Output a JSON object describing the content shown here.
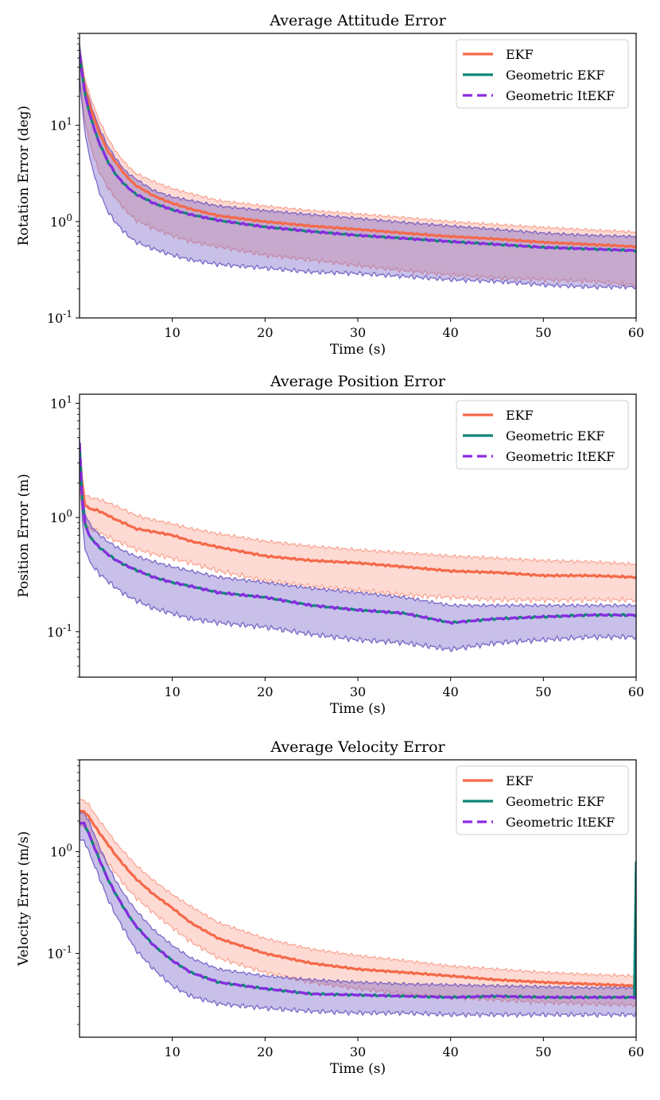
{
  "chart_data": [
    {
      "type": "line",
      "title": "Average Attitude Error",
      "xlabel": "Time (s)",
      "ylabel": "Rotation Error (deg)",
      "yscale": "log",
      "xlim": [
        0,
        60
      ],
      "ylim": [
        0.1,
        90
      ],
      "xticks": [
        10,
        20,
        30,
        40,
        50,
        60
      ],
      "yticks": [
        {
          "value": 0.1,
          "label": "10^{-1}"
        },
        {
          "value": 1,
          "label": "10^{0}"
        },
        {
          "value": 10,
          "label": "10^{1}"
        }
      ],
      "legend_position": "top-right",
      "grid": false,
      "x": [
        0,
        0.5,
        1,
        2,
        3,
        4,
        5,
        6,
        8,
        10,
        12,
        15,
        20,
        25,
        30,
        35,
        40,
        45,
        50,
        55,
        60
      ],
      "series": [
        {
          "name": "EKF",
          "color": "#f4694a",
          "dash": "solid",
          "mean": [
            55,
            27,
            17,
            9.0,
            5.5,
            4.0,
            3.0,
            2.4,
            1.85,
            1.55,
            1.35,
            1.15,
            1.0,
            0.9,
            0.83,
            0.76,
            0.7,
            0.66,
            0.61,
            0.58,
            0.55
          ],
          "upper": [
            70,
            33,
            22,
            12,
            7.5,
            5.2,
            4.0,
            3.2,
            2.6,
            2.2,
            1.95,
            1.65,
            1.45,
            1.3,
            1.2,
            1.1,
            1.0,
            0.93,
            0.87,
            0.82,
            0.78
          ],
          "lower": [
            30,
            13,
            7.0,
            3.5,
            2.3,
            1.7,
            1.3,
            1.05,
            0.85,
            0.72,
            0.62,
            0.55,
            0.45,
            0.4,
            0.35,
            0.31,
            0.28,
            0.26,
            0.25,
            0.24,
            0.22
          ]
        },
        {
          "name": "Geometric EKF",
          "color": "#0f8577",
          "dash": "solid",
          "mean": [
            55,
            24,
            14,
            7.0,
            4.3,
            3.0,
            2.35,
            1.95,
            1.55,
            1.33,
            1.18,
            1.03,
            0.88,
            0.79,
            0.72,
            0.67,
            0.62,
            0.58,
            0.54,
            0.52,
            0.5
          ],
          "upper": [
            70,
            30,
            19,
            10,
            6.2,
            4.4,
            3.3,
            2.8,
            2.1,
            1.8,
            1.65,
            1.45,
            1.3,
            1.18,
            1.08,
            0.98,
            0.9,
            0.83,
            0.76,
            0.72,
            0.7
          ],
          "lower": [
            30,
            10,
            5.0,
            2.2,
            1.3,
            0.95,
            0.75,
            0.62,
            0.52,
            0.45,
            0.4,
            0.36,
            0.33,
            0.3,
            0.29,
            0.27,
            0.25,
            0.24,
            0.22,
            0.21,
            0.21
          ]
        },
        {
          "name": "Geometric ItEKF",
          "color": "#8a2be2",
          "dash": "dashed",
          "mean": [
            55,
            24,
            14,
            7.0,
            4.3,
            3.0,
            2.35,
            1.95,
            1.55,
            1.33,
            1.18,
            1.03,
            0.88,
            0.79,
            0.72,
            0.67,
            0.62,
            0.58,
            0.54,
            0.52,
            0.5
          ],
          "upper": [
            70,
            30,
            19,
            10,
            6.2,
            4.4,
            3.3,
            2.8,
            2.1,
            1.8,
            1.65,
            1.45,
            1.3,
            1.18,
            1.08,
            0.98,
            0.9,
            0.83,
            0.76,
            0.72,
            0.7
          ],
          "lower": [
            30,
            10,
            5.0,
            2.2,
            1.3,
            0.95,
            0.75,
            0.62,
            0.52,
            0.45,
            0.4,
            0.36,
            0.33,
            0.3,
            0.29,
            0.27,
            0.25,
            0.24,
            0.22,
            0.21,
            0.21
          ]
        }
      ]
    },
    {
      "type": "line",
      "title": "Average Position Error",
      "xlabel": "Time (s)",
      "ylabel": "Position Error (m)",
      "yscale": "log",
      "xlim": [
        0,
        60
      ],
      "ylim": [
        0.04,
        12
      ],
      "xticks": [
        10,
        20,
        30,
        40,
        50,
        60
      ],
      "yticks": [
        {
          "value": 0.1,
          "label": "10^{-1}"
        },
        {
          "value": 1,
          "label": "10^{0}"
        },
        {
          "value": 10,
          "label": "10^{1}"
        }
      ],
      "legend_position": "top-right",
      "grid": false,
      "x": [
        0,
        0.3,
        0.6,
        1,
        2,
        3,
        4,
        5,
        6,
        8,
        10,
        12,
        15,
        20,
        25,
        30,
        35,
        40,
        45,
        50,
        55,
        60
      ],
      "series": [
        {
          "name": "EKF",
          "color": "#f4694a",
          "dash": "solid",
          "mean": [
            4.0,
            1.8,
            1.3,
            1.2,
            1.15,
            1.05,
            0.95,
            0.88,
            0.8,
            0.75,
            0.7,
            0.62,
            0.55,
            0.46,
            0.42,
            0.4,
            0.37,
            0.34,
            0.33,
            0.31,
            0.31,
            0.3
          ],
          "upper": [
            5.0,
            2.2,
            1.6,
            1.5,
            1.45,
            1.35,
            1.25,
            1.15,
            1.05,
            0.95,
            0.88,
            0.8,
            0.72,
            0.62,
            0.56,
            0.52,
            0.49,
            0.46,
            0.44,
            0.42,
            0.41,
            0.39
          ],
          "lower": [
            2.0,
            1.0,
            0.85,
            0.8,
            0.75,
            0.68,
            0.62,
            0.58,
            0.53,
            0.48,
            0.44,
            0.4,
            0.34,
            0.28,
            0.25,
            0.23,
            0.21,
            0.2,
            0.19,
            0.19,
            0.19,
            0.19
          ]
        },
        {
          "name": "Geometric EKF",
          "color": "#0f8577",
          "dash": "solid",
          "mean": [
            4.5,
            1.4,
            0.9,
            0.7,
            0.56,
            0.48,
            0.42,
            0.38,
            0.35,
            0.3,
            0.27,
            0.25,
            0.22,
            0.2,
            0.17,
            0.155,
            0.145,
            0.12,
            0.13,
            0.135,
            0.14,
            0.14
          ],
          "upper": [
            5.0,
            1.7,
            1.1,
            0.9,
            0.72,
            0.62,
            0.55,
            0.5,
            0.46,
            0.41,
            0.37,
            0.34,
            0.3,
            0.27,
            0.24,
            0.22,
            0.2,
            0.17,
            0.17,
            0.17,
            0.17,
            0.17
          ],
          "lower": [
            3.5,
            0.9,
            0.55,
            0.42,
            0.33,
            0.28,
            0.24,
            0.21,
            0.19,
            0.16,
            0.145,
            0.13,
            0.12,
            0.11,
            0.095,
            0.085,
            0.08,
            0.07,
            0.08,
            0.085,
            0.09,
            0.09
          ]
        },
        {
          "name": "Geometric ItEKF",
          "color": "#8a2be2",
          "dash": "dashed",
          "mean": [
            4.5,
            1.4,
            0.9,
            0.7,
            0.56,
            0.48,
            0.42,
            0.38,
            0.35,
            0.3,
            0.27,
            0.25,
            0.22,
            0.2,
            0.17,
            0.155,
            0.145,
            0.12,
            0.13,
            0.135,
            0.14,
            0.14
          ],
          "upper": [
            5.0,
            1.7,
            1.1,
            0.9,
            0.72,
            0.62,
            0.55,
            0.5,
            0.46,
            0.41,
            0.37,
            0.34,
            0.3,
            0.27,
            0.24,
            0.22,
            0.2,
            0.17,
            0.17,
            0.17,
            0.17,
            0.17
          ],
          "lower": [
            3.5,
            0.9,
            0.55,
            0.42,
            0.33,
            0.28,
            0.24,
            0.21,
            0.19,
            0.16,
            0.145,
            0.13,
            0.12,
            0.11,
            0.095,
            0.085,
            0.08,
            0.07,
            0.08,
            0.085,
            0.09,
            0.09
          ]
        }
      ]
    },
    {
      "type": "line",
      "title": "Average Velocity Error",
      "xlabel": "Time (s)",
      "ylabel": "Velocity Error (m/s)",
      "yscale": "log",
      "xlim": [
        0,
        60
      ],
      "ylim": [
        0.015,
        8
      ],
      "xticks": [
        10,
        20,
        30,
        40,
        50,
        60
      ],
      "yticks": [
        {
          "value": 0.1,
          "label": "10^{-1}"
        },
        {
          "value": 1,
          "label": "10^{0}"
        }
      ],
      "legend_position": "top-right",
      "grid": false,
      "x": [
        0,
        0.5,
        1,
        2,
        3,
        4,
        5,
        6,
        8,
        10,
        12,
        15,
        20,
        25,
        30,
        35,
        40,
        45,
        50,
        55,
        59.8,
        60
      ],
      "series": [
        {
          "name": "EKF",
          "color": "#f4694a",
          "dash": "solid",
          "mean": [
            2.5,
            2.5,
            2.2,
            1.6,
            1.2,
            0.9,
            0.7,
            0.55,
            0.38,
            0.28,
            0.2,
            0.14,
            0.1,
            0.08,
            0.07,
            0.065,
            0.06,
            0.055,
            0.052,
            0.05,
            0.048,
            0.05
          ],
          "upper": [
            3.3,
            3.2,
            2.9,
            2.1,
            1.6,
            1.2,
            0.95,
            0.75,
            0.52,
            0.38,
            0.29,
            0.2,
            0.14,
            0.11,
            0.095,
            0.085,
            0.075,
            0.07,
            0.065,
            0.062,
            0.06,
            0.06
          ],
          "lower": [
            1.8,
            1.8,
            1.5,
            1.05,
            0.78,
            0.6,
            0.45,
            0.36,
            0.25,
            0.18,
            0.13,
            0.09,
            0.065,
            0.052,
            0.045,
            0.04,
            0.037,
            0.035,
            0.033,
            0.032,
            0.031,
            0.031
          ]
        },
        {
          "name": "Geometric EKF",
          "color": "#0f8577",
          "dash": "solid",
          "mean": [
            1.9,
            1.9,
            1.5,
            0.9,
            0.55,
            0.37,
            0.26,
            0.19,
            0.12,
            0.085,
            0.065,
            0.052,
            0.045,
            0.04,
            0.039,
            0.038,
            0.037,
            0.038,
            0.037,
            0.037,
            0.037,
            0.8
          ],
          "upper": [
            2.4,
            2.4,
            2.0,
            1.2,
            0.75,
            0.5,
            0.36,
            0.27,
            0.17,
            0.12,
            0.09,
            0.07,
            0.06,
            0.055,
            0.052,
            0.05,
            0.049,
            0.048,
            0.047,
            0.046,
            0.046,
            0.046
          ],
          "lower": [
            1.3,
            1.3,
            1.0,
            0.6,
            0.35,
            0.23,
            0.16,
            0.11,
            0.07,
            0.048,
            0.038,
            0.032,
            0.029,
            0.027,
            0.026,
            0.026,
            0.025,
            0.025,
            0.025,
            0.025,
            0.025,
            0.025
          ]
        },
        {
          "name": "Geometric ItEKF",
          "color": "#8a2be2",
          "dash": "dashed",
          "mean": [
            1.9,
            1.9,
            1.5,
            0.9,
            0.55,
            0.37,
            0.26,
            0.19,
            0.12,
            0.085,
            0.065,
            0.052,
            0.045,
            0.04,
            0.039,
            0.038,
            0.037,
            0.038,
            0.037,
            0.037,
            0.037,
            0.037
          ],
          "upper": [
            2.4,
            2.4,
            2.0,
            1.2,
            0.75,
            0.5,
            0.36,
            0.27,
            0.17,
            0.12,
            0.09,
            0.07,
            0.06,
            0.055,
            0.052,
            0.05,
            0.049,
            0.048,
            0.047,
            0.046,
            0.046,
            0.046
          ],
          "lower": [
            1.3,
            1.3,
            1.0,
            0.6,
            0.35,
            0.23,
            0.16,
            0.11,
            0.07,
            0.048,
            0.038,
            0.032,
            0.029,
            0.027,
            0.026,
            0.026,
            0.025,
            0.025,
            0.025,
            0.025,
            0.025,
            0.025
          ]
        }
      ]
    }
  ]
}
